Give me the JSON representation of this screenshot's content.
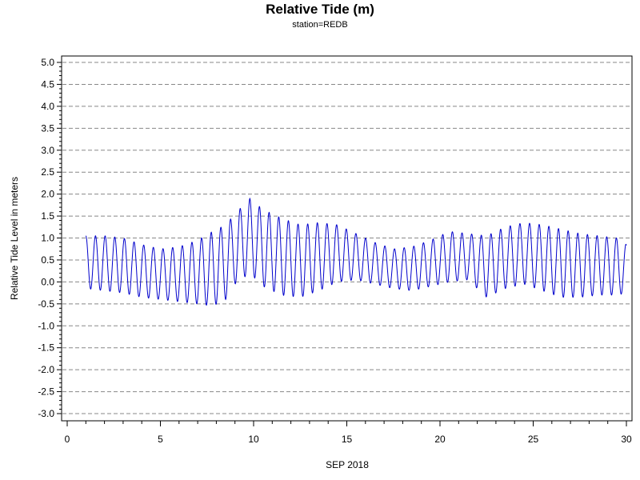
{
  "chart_data": {
    "type": "line",
    "title": "Relative Tide (m)",
    "subtitle": "station=REDB",
    "xlabel": "SEP 2018",
    "ylabel": "Relative Tide Level in meters",
    "xlim": [
      0,
      30
    ],
    "ylim": [
      -3.0,
      5.0
    ],
    "x_ticks": [
      0,
      5,
      10,
      15,
      20,
      25,
      30
    ],
    "x_minor_step": 1,
    "y_ticks": [
      "5.0",
      "4.5",
      "4.0",
      "3.5",
      "3.0",
      "2.5",
      "2.0",
      "1.5",
      "1.0",
      "0.5",
      "0.0",
      "-0.5",
      "-1.0",
      "-1.5",
      "-2.0",
      "-2.5",
      "-3.0"
    ],
    "y_minor_step": 0.1,
    "grid": "horizontal-dashed",
    "series": [
      {
        "color": "#0000cc",
        "x_start": 1.0,
        "x_end": 30.0,
        "period_days": 0.5175,
        "envelope": {
          "days": [
            1.0,
            2.0,
            3.0,
            4.0,
            5.0,
            6.0,
            7.0,
            7.8,
            8.5,
            9.0,
            9.8,
            10.5,
            11.5,
            12.5,
            13.5,
            14.5,
            15.5,
            16.5,
            17.5,
            18.5,
            19.5,
            20.5,
            21.5,
            22.5,
            23.5,
            24.5,
            25.5,
            26.5,
            27.5,
            28.5,
            29.5,
            30.0
          ],
          "high": [
            1.05,
            1.05,
            1.0,
            0.85,
            0.75,
            0.8,
            0.95,
            1.15,
            1.3,
            1.55,
            1.9,
            1.65,
            1.45,
            1.3,
            1.35,
            1.3,
            1.1,
            0.9,
            0.75,
            0.8,
            0.95,
            1.15,
            1.1,
            1.05,
            1.25,
            1.35,
            1.3,
            1.2,
            1.1,
            1.05,
            1.0,
            0.85
          ],
          "low": [
            -0.15,
            -0.2,
            -0.25,
            -0.35,
            -0.4,
            -0.45,
            -0.5,
            -0.55,
            -0.4,
            -0.05,
            0.2,
            -0.1,
            -0.3,
            -0.35,
            -0.2,
            0.0,
            0.05,
            -0.05,
            -0.15,
            -0.2,
            -0.1,
            0.0,
            0.05,
            -0.35,
            -0.15,
            -0.05,
            -0.2,
            -0.35,
            -0.35,
            -0.3,
            -0.3,
            -0.25
          ]
        }
      }
    ]
  }
}
